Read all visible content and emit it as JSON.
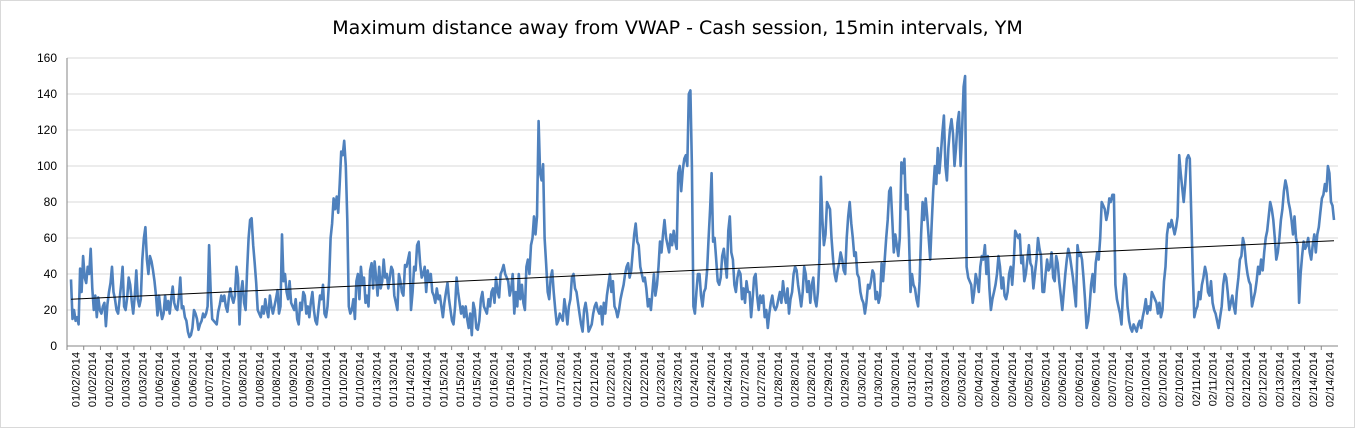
{
  "chart_data": {
    "type": "line",
    "title": "Maximum distance away from VWAP - Cash session, 15min intervals, YM",
    "xlabel": "",
    "ylabel": "",
    "ylim": [
      0,
      160
    ],
    "yticks": [
      0,
      20,
      40,
      60,
      80,
      100,
      120,
      140,
      160
    ],
    "grid": "horizontal",
    "legend": "none",
    "x_tick_labels": [
      "01/02/2014",
      "01/02/2014",
      "01/02/2014",
      "01/03/2014",
      "01/03/2014",
      "01/06/2014",
      "01/06/2014",
      "01/06/2014",
      "01/07/2014",
      "01/07/2014",
      "01/08/2014",
      "01/08/2014",
      "01/08/2014",
      "01/09/2014",
      "01/09/2014",
      "01/10/2014",
      "01/10/2014",
      "01/10/2014",
      "01/13/2014",
      "01/13/2014",
      "01/14/2014",
      "01/14/2014",
      "01/15/2014",
      "01/15/2014",
      "01/15/2014",
      "01/16/2014",
      "01/16/2014",
      "01/17/2014",
      "01/17/2014",
      "01/17/2014",
      "01/21/2014",
      "01/21/2014",
      "01/22/2014",
      "01/22/2014",
      "01/22/2014",
      "01/23/2014",
      "01/23/2014",
      "01/24/2014",
      "01/24/2014",
      "01/24/2014",
      "01/27/2014",
      "01/27/2014",
      "01/28/2014",
      "01/28/2014",
      "01/28/2014",
      "01/29/2014",
      "01/29/2014",
      "01/30/2014",
      "01/30/2014",
      "01/30/2014",
      "01/31/2014",
      "01/31/2014",
      "02/03/2014",
      "02/03/2014",
      "02/04/2014",
      "02/04/2014",
      "02/04/2014",
      "02/05/2014",
      "02/05/2014",
      "02/06/2014",
      "02/06/2014",
      "02/06/2014",
      "02/07/2014",
      "02/07/2014",
      "02/10/2014",
      "02/10/2014",
      "02/10/2014",
      "02/11/2014",
      "02/11/2014",
      "02/12/2014",
      "02/12/2014",
      "02/12/2014",
      "02/13/2014",
      "02/13/2014",
      "02/14/2014",
      "02/14/2014"
    ],
    "series": [
      {
        "color": "#4f81bd",
        "values": [
          37,
          15,
          20,
          14,
          16,
          12,
          43,
          30,
          50,
          38,
          35,
          44,
          40,
          54,
          32,
          20,
          28,
          16,
          27,
          20,
          18,
          22,
          24,
          11,
          23,
          30,
          35,
          44,
          30,
          26,
          20,
          18,
          26,
          34,
          44,
          22,
          20,
          27,
          38,
          34,
          25,
          18,
          28,
          42,
          26,
          22,
          26,
          48,
          60,
          66,
          48,
          40,
          50,
          47,
          42,
          36,
          28,
          17,
          28,
          20,
          15,
          18,
          28,
          20,
          25,
          18,
          26,
          33,
          24,
          21,
          20,
          27,
          38,
          21,
          22,
          16,
          14,
          8,
          5,
          6,
          10,
          20,
          18,
          15,
          9,
          12,
          14,
          18,
          16,
          18,
          22,
          56,
          30,
          15,
          14,
          13,
          12,
          19,
          23,
          28,
          25,
          28,
          22,
          19,
          27,
          32,
          27,
          24,
          28,
          44,
          38,
          12,
          30,
          36,
          24,
          20,
          42,
          60,
          70,
          71,
          56,
          46,
          35,
          20,
          18,
          16,
          22,
          18,
          26,
          20,
          16,
          28,
          22,
          18,
          22,
          26,
          31,
          18,
          22,
          62,
          36,
          40,
          30,
          26,
          36,
          24,
          22,
          20,
          26,
          15,
          12,
          24,
          20,
          30,
          28,
          18,
          22,
          16,
          24,
          30,
          20,
          14,
          12,
          20,
          28,
          26,
          34,
          18,
          16,
          22,
          36,
          60,
          68,
          82,
          76,
          83,
          74,
          90,
          108,
          106,
          114,
          100,
          70,
          22,
          18,
          20,
          26,
          15,
          36,
          40,
          26,
          44,
          34,
          38,
          24,
          28,
          22,
          42,
          46,
          32,
          47,
          38,
          28,
          44,
          32,
          36,
          48,
          38,
          40,
          32,
          38,
          44,
          42,
          28,
          24,
          20,
          40,
          36,
          30,
          28,
          45,
          44,
          48,
          52,
          20,
          30,
          44,
          42,
          56,
          58,
          46,
          38,
          40,
          44,
          30,
          42,
          36,
          40,
          30,
          28,
          24,
          32,
          26,
          28,
          22,
          16,
          24,
          30,
          35,
          26,
          20,
          14,
          12,
          22,
          38,
          30,
          24,
          18,
          22,
          16,
          22,
          15,
          10,
          18,
          6,
          24,
          20,
          10,
          9,
          14,
          26,
          30,
          22,
          20,
          18,
          26,
          22,
          30,
          32,
          24,
          38,
          30,
          27,
          40,
          42,
          45,
          40,
          38,
          36,
          28,
          32,
          40,
          18,
          30,
          22,
          40,
          26,
          34,
          24,
          20,
          44,
          48,
          40,
          56,
          60,
          72,
          62,
          72,
          125,
          96,
          92,
          101,
          60,
          46,
          30,
          26,
          38,
          42,
          30,
          20,
          12,
          14,
          18,
          16,
          14,
          26,
          20,
          12,
          22,
          26,
          38,
          40,
          32,
          30,
          24,
          18,
          12,
          8,
          20,
          24,
          18,
          8,
          10,
          12,
          18,
          22,
          24,
          20,
          18,
          22,
          12,
          24,
          18,
          28,
          34,
          40,
          30,
          36,
          22,
          20,
          16,
          20,
          26,
          30,
          34,
          40,
          44,
          46,
          38,
          42,
          52,
          62,
          68,
          58,
          56,
          44,
          40,
          36,
          38,
          32,
          22,
          26,
          20,
          30,
          40,
          28,
          34,
          44,
          58,
          52,
          62,
          70,
          60,
          56,
          52,
          62,
          56,
          64,
          58,
          54,
          96,
          100,
          86,
          98,
          104,
          106,
          100,
          140,
          142,
          100,
          22,
          18,
          30,
          40,
          40,
          28,
          22,
          30,
          32,
          42,
          60,
          76,
          96,
          58,
          60,
          48,
          36,
          34,
          38,
          50,
          54,
          46,
          38,
          64,
          72,
          52,
          48,
          34,
          30,
          38,
          42,
          40,
          26,
          32,
          24,
          36,
          30,
          30,
          16,
          26,
          38,
          40,
          28,
          20,
          28,
          24,
          28,
          16,
          20,
          10,
          18,
          24,
          28,
          22,
          20,
          22,
          26,
          30,
          24,
          36,
          28,
          24,
          32,
          18,
          26,
          30,
          40,
          44,
          42,
          34,
          28,
          22,
          30,
          44,
          40,
          30,
          36,
          24,
          34,
          38,
          26,
          22,
          30,
          48,
          94,
          70,
          56,
          62,
          80,
          78,
          76,
          60,
          48,
          40,
          36,
          42,
          46,
          52,
          48,
          42,
          40,
          60,
          72,
          80,
          68,
          60,
          50,
          52,
          40,
          38,
          30,
          26,
          24,
          18,
          24,
          34,
          32,
          36,
          42,
          40,
          26,
          30,
          24,
          28,
          46,
          36,
          48,
          60,
          70,
          86,
          88,
          70,
          52,
          62,
          56,
          50,
          60,
          102,
          96,
          104,
          76,
          84,
          60,
          30,
          40,
          34,
          32,
          26,
          22,
          36,
          62,
          80,
          70,
          82,
          72,
          60,
          48,
          68,
          86,
          100,
          90,
          110,
          96,
          106,
          118,
          128,
          100,
          92,
          110,
          120,
          126,
          118,
          100,
          110,
          124,
          130,
          100,
          120,
          144,
          150,
          44,
          38,
          36,
          34,
          24,
          30,
          40,
          36,
          30,
          44,
          50,
          48,
          56,
          40,
          50,
          32,
          20,
          26,
          30,
          34,
          40,
          50,
          44,
          32,
          38,
          28,
          26,
          30,
          40,
          44,
          34,
          46,
          64,
          62,
          60,
          62,
          46,
          50,
          36,
          40,
          48,
          56,
          46,
          44,
          32,
          40,
          48,
          60,
          54,
          50,
          30,
          30,
          40,
          48,
          42,
          44,
          52,
          38,
          36,
          50,
          46,
          36,
          28,
          20,
          30,
          40,
          48,
          54,
          50,
          44,
          38,
          30,
          22,
          56,
          50,
          52,
          48,
          38,
          26,
          10,
          14,
          22,
          34,
          40,
          30,
          46,
          52,
          48,
          60,
          80,
          78,
          76,
          70,
          74,
          82,
          80,
          84,
          84,
          34,
          26,
          22,
          18,
          12,
          30,
          40,
          38,
          22,
          14,
          10,
          8,
          12,
          10,
          8,
          12,
          14,
          10,
          16,
          20,
          26,
          18,
          22,
          20,
          30,
          28,
          26,
          24,
          18,
          24,
          16,
          20,
          36,
          44,
          62,
          68,
          66,
          70,
          66,
          62,
          66,
          72,
          106,
          96,
          88,
          80,
          90,
          104,
          106,
          104,
          72,
          40,
          16,
          20,
          22,
          30,
          26,
          34,
          38,
          44,
          40,
          30,
          28,
          36,
          24,
          20,
          18,
          14,
          10,
          16,
          22,
          34,
          40,
          38,
          30,
          20,
          24,
          28,
          22,
          18,
          30,
          38,
          48,
          50,
          60,
          56,
          46,
          40,
          36,
          34,
          22,
          26,
          30,
          36,
          44,
          40,
          48,
          42,
          52,
          60,
          64,
          72,
          80,
          76,
          70,
          60,
          48,
          52,
          60,
          70,
          76,
          86,
          92,
          88,
          80,
          76,
          70,
          62,
          72,
          60,
          56,
          24,
          40,
          50,
          58,
          54,
          56,
          60,
          52,
          48,
          56,
          62,
          52,
          62,
          66,
          74,
          82,
          84,
          90,
          86,
          100,
          96,
          80,
          78,
          70
        ]
      }
    ],
    "trendline": {
      "start": 26,
      "end": 58.5
    }
  }
}
